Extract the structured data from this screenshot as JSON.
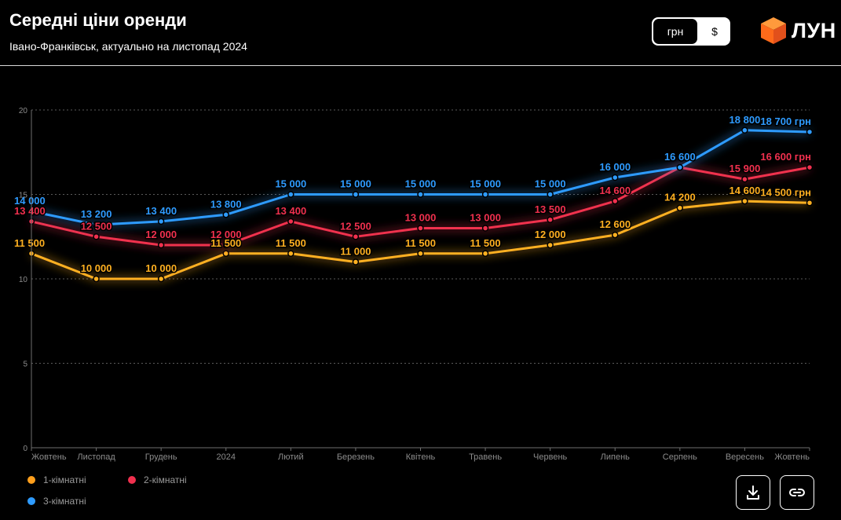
{
  "header": {
    "title": "Середні ціни оренди",
    "subtitle": "Івано-Франківськ, актуально на листопад 2024"
  },
  "currency": {
    "options": [
      "грн",
      "$"
    ],
    "selected": "грн"
  },
  "brand": {
    "name": "ЛУН",
    "logo_icon": "orange-cube-icon"
  },
  "actions": {
    "download_icon": "download-icon",
    "link_icon": "link-icon"
  },
  "legend": [
    {
      "label": "1-кімнатні",
      "color": "#ff9f1c"
    },
    {
      "label": "2-кімнатні",
      "color": "#f0304e"
    },
    {
      "label": "3-кімнатні",
      "color": "#2e9bff"
    }
  ],
  "chart_data": {
    "type": "line",
    "title": "Середні ціни оренди",
    "xlabel": "",
    "ylabel": "",
    "unit": "грн",
    "ylim": [
      0,
      20
    ],
    "yticks": [
      0,
      5,
      10,
      15,
      20
    ],
    "categories": [
      "Жовтень",
      "Листопад",
      "Грудень",
      "2024",
      "Лютий",
      "Березень",
      "Квітень",
      "Травень",
      "Червень",
      "Липень",
      "Серпень",
      "Вересень",
      "Жовтень"
    ],
    "series": [
      {
        "name": "1-кімнатні",
        "color": "#ffb020",
        "values": [
          11500,
          10000,
          10000,
          11500,
          11500,
          11000,
          11500,
          11500,
          12000,
          12600,
          14200,
          14600,
          14500
        ],
        "labels": [
          "11 500",
          "10 000",
          "10 000",
          "11 500",
          "11 500",
          "11 000",
          "11 500",
          "11 500",
          "12 000",
          "12 600",
          "14 200",
          "14 600",
          "14 500 грн"
        ]
      },
      {
        "name": "2-кімнатні",
        "color": "#f0304e",
        "values": [
          13400,
          12500,
          12000,
          12000,
          13400,
          12500,
          13000,
          13000,
          13500,
          14600,
          16600,
          15900,
          16600
        ],
        "labels": [
          "13 400",
          "12 500",
          "12 000",
          "12 000",
          "13 400",
          "12 500",
          "13 000",
          "13 000",
          "13 500",
          "14 600",
          "16 600",
          "15 900",
          "16 600 грн"
        ]
      },
      {
        "name": "3-кімнатні",
        "color": "#2e9bff",
        "values": [
          14000,
          13200,
          13400,
          13800,
          15000,
          15000,
          15000,
          15000,
          15000,
          16000,
          16600,
          18800,
          18700
        ],
        "labels": [
          "14 000",
          "13 200",
          "13 400",
          "13 800",
          "15 000",
          "15 000",
          "15 000",
          "15 000",
          "15 000",
          "16 000",
          "16 600",
          "18 800",
          "18 700 грн"
        ]
      }
    ]
  }
}
